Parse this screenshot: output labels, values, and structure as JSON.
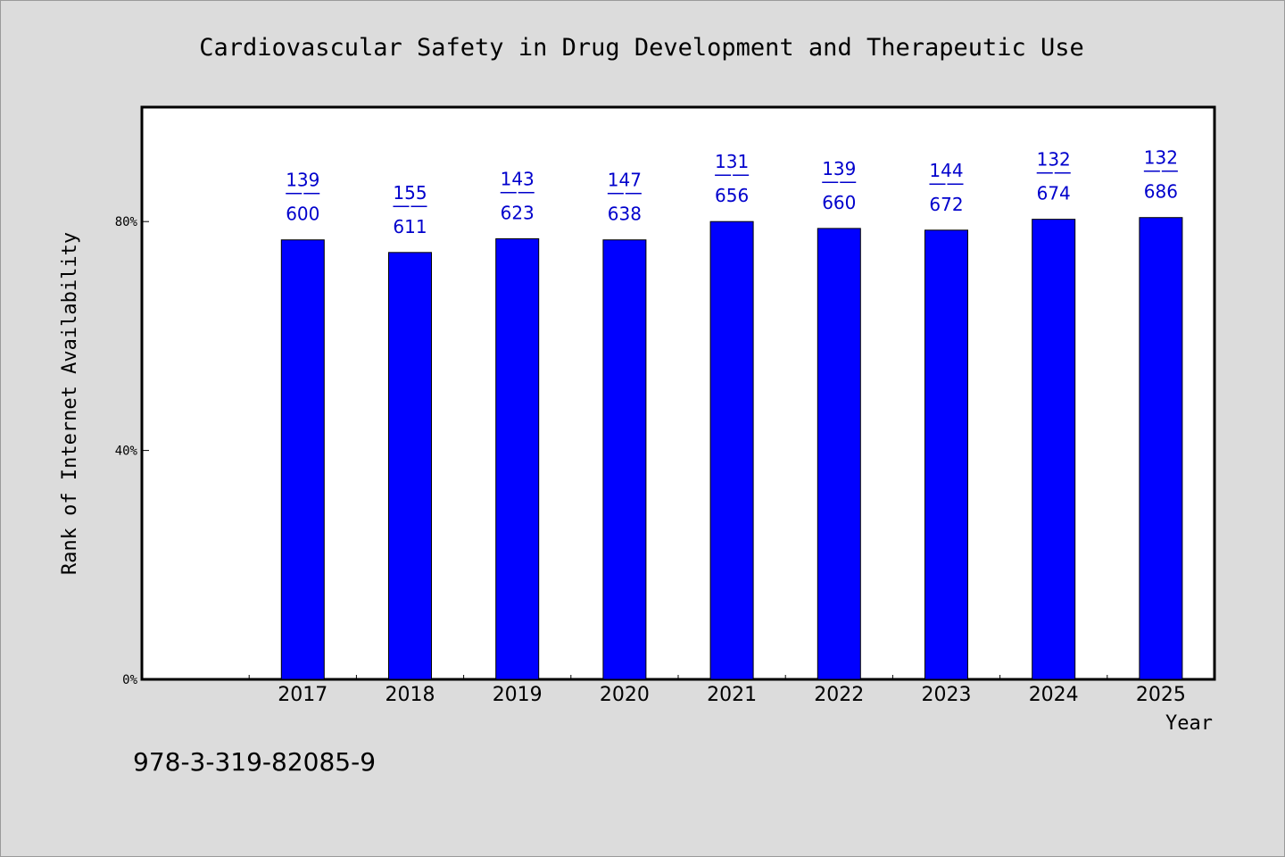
{
  "chart_data": {
    "type": "bar",
    "title": "Cardiovascular Safety in Drug Development and Therapeutic Use",
    "xlabel": "Year",
    "ylabel": "Rank of Internet Availability",
    "categories": [
      "2017",
      "2018",
      "2019",
      "2020",
      "2021",
      "2022",
      "2023",
      "2024",
      "2025"
    ],
    "values": [
      0.768,
      0.746,
      0.77,
      0.768,
      0.8,
      0.788,
      0.785,
      0.804,
      0.807
    ],
    "numerators": [
      "139",
      "155",
      "143",
      "147",
      "131",
      "139",
      "144",
      "132",
      "132"
    ],
    "denominators": [
      "600",
      "611",
      "623",
      "638",
      "656",
      "660",
      "672",
      "674",
      "686"
    ],
    "separator": "——",
    "ylim": [
      0,
      1.0
    ],
    "yticks": [
      {
        "value": 0,
        "label": "0%"
      },
      {
        "value": 0.4,
        "label": "40%"
      },
      {
        "value": 0.8,
        "label": "80%"
      }
    ],
    "grid": false,
    "legend": "none",
    "colors": {
      "bar": "#0000ff",
      "bar_edge": "#000000",
      "data_label": "#0000cc",
      "plot_background": "#ffffff",
      "figure_background": "#dcdcdc"
    }
  },
  "footnote": "978-3-319-82085-9"
}
